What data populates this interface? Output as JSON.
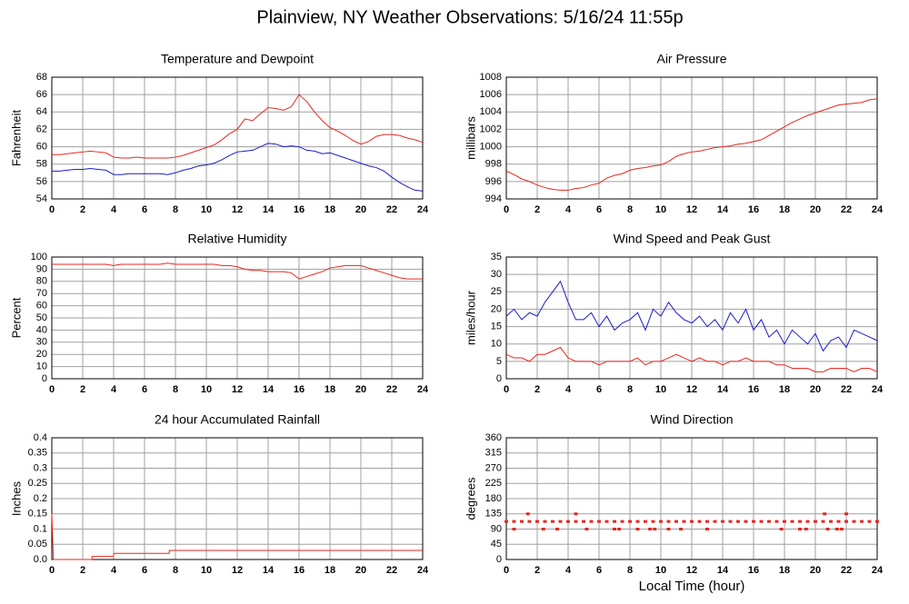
{
  "title": "Plainview, NY Weather Observations: 5/16/24 11:55p",
  "chart_data": [
    {
      "type": "line",
      "title": "Temperature and Dewpoint",
      "ylabel": "Fahrenheit",
      "x": [
        0,
        0.5,
        1,
        1.5,
        2,
        2.5,
        3,
        3.5,
        4,
        4.5,
        5,
        5.5,
        6,
        6.5,
        7,
        7.5,
        8,
        8.5,
        9,
        9.5,
        10,
        10.5,
        11,
        11.5,
        12,
        12.5,
        13,
        13.5,
        14,
        14.5,
        15,
        15.5,
        16,
        16.5,
        17,
        17.5,
        18,
        18.5,
        19,
        19.5,
        20,
        20.5,
        21,
        21.5,
        22,
        22.5,
        23,
        23.5,
        24
      ],
      "series": [
        {
          "color": "#e8261f",
          "values": [
            59.1,
            59.1,
            59.2,
            59.3,
            59.4,
            59.5,
            59.4,
            59.3,
            58.8,
            58.7,
            58.7,
            58.8,
            58.7,
            58.7,
            58.7,
            58.7,
            58.8,
            59.0,
            59.3,
            59.6,
            59.9,
            60.2,
            60.8,
            61.5,
            62.0,
            63.2,
            63.0,
            63.8,
            64.5,
            64.4,
            64.2,
            64.6,
            66.0,
            65.2,
            64.0,
            63.0,
            62.2,
            61.8,
            61.3,
            60.7,
            60.3,
            60.6,
            61.2,
            61.4,
            61.4,
            61.3,
            61.0,
            60.8,
            60.5
          ]
        },
        {
          "color": "#1a1acd",
          "values": [
            57.2,
            57.2,
            57.3,
            57.4,
            57.4,
            57.5,
            57.4,
            57.3,
            56.8,
            56.8,
            56.9,
            56.9,
            56.9,
            56.9,
            56.9,
            56.8,
            57.0,
            57.3,
            57.5,
            57.8,
            57.9,
            58.1,
            58.5,
            59.0,
            59.4,
            59.5,
            59.6,
            60.0,
            60.4,
            60.3,
            60.0,
            60.1,
            60.0,
            59.6,
            59.5,
            59.2,
            59.3,
            59.0,
            58.7,
            58.4,
            58.1,
            57.8,
            57.6,
            57.2,
            56.5,
            55.9,
            55.4,
            55.0,
            54.9
          ]
        }
      ],
      "xlim": [
        0,
        24
      ],
      "xticks": [
        0,
        2,
        4,
        6,
        8,
        10,
        12,
        14,
        16,
        18,
        20,
        22,
        24
      ],
      "ylim": [
        54,
        68
      ],
      "yticks": [
        54,
        56,
        58,
        60,
        62,
        64,
        66,
        68
      ],
      "grid": true
    },
    {
      "type": "line",
      "title": "Air Pressure",
      "ylabel": "millibars",
      "x": [
        0,
        0.5,
        1,
        1.5,
        2,
        2.5,
        3,
        3.5,
        4,
        4.5,
        5,
        5.5,
        6,
        6.5,
        7,
        7.5,
        8,
        8.5,
        9,
        9.5,
        10,
        10.5,
        11,
        11.5,
        12,
        12.5,
        13,
        13.5,
        14,
        14.5,
        15,
        15.5,
        16,
        16.5,
        17,
        17.5,
        18,
        18.5,
        19,
        19.5,
        20,
        20.5,
        21,
        21.5,
        22,
        22.5,
        23,
        23.5,
        24
      ],
      "series": [
        {
          "color": "#e8261f",
          "values": [
            997.2,
            996.8,
            996.3,
            996.0,
            995.6,
            995.3,
            995.1,
            995.0,
            995.0,
            995.2,
            995.3,
            995.6,
            995.8,
            996.4,
            996.7,
            996.9,
            997.3,
            997.5,
            997.6,
            997.8,
            997.9,
            998.3,
            998.9,
            999.2,
            999.4,
            999.5,
            999.7,
            999.9,
            1000.0,
            1000.1,
            1000.3,
            1000.4,
            1000.6,
            1000.8,
            1001.3,
            1001.8,
            1002.3,
            1002.8,
            1003.2,
            1003.6,
            1003.9,
            1004.2,
            1004.5,
            1004.8,
            1004.9,
            1005.0,
            1005.1,
            1005.4,
            1005.5
          ]
        }
      ],
      "xlim": [
        0,
        24
      ],
      "xticks": [
        0,
        2,
        4,
        6,
        8,
        10,
        12,
        14,
        16,
        18,
        20,
        22,
        24
      ],
      "ylim": [
        994,
        1008
      ],
      "yticks": [
        994,
        996,
        998,
        1000,
        1002,
        1004,
        1006,
        1008
      ],
      "grid": true
    },
    {
      "type": "line",
      "title": "Relative Humidity",
      "ylabel": "Percent",
      "x": [
        0,
        0.5,
        1,
        1.5,
        2,
        2.5,
        3,
        3.5,
        4,
        4.5,
        5,
        5.5,
        6,
        6.5,
        7,
        7.5,
        8,
        8.5,
        9,
        9.5,
        10,
        10.5,
        11,
        11.5,
        12,
        12.5,
        13,
        13.5,
        14,
        14.5,
        15,
        15.5,
        16,
        16.5,
        17,
        17.5,
        18,
        18.5,
        19,
        19.5,
        20,
        20.5,
        21,
        21.5,
        22,
        22.5,
        23,
        23.5,
        24
      ],
      "series": [
        {
          "color": "#e8261f",
          "values": [
            94,
            94,
            94,
            94,
            94,
            94,
            94,
            94,
            93,
            94,
            94,
            94,
            94,
            94,
            94,
            95,
            94,
            94,
            94,
            94,
            94,
            94,
            93,
            93,
            92,
            90,
            89,
            89,
            88,
            88,
            88,
            87,
            82,
            84,
            86,
            88,
            91,
            92,
            93,
            93,
            93,
            91,
            89,
            87,
            85,
            83,
            82,
            82,
            82
          ]
        }
      ],
      "xlim": [
        0,
        24
      ],
      "xticks": [
        0,
        2,
        4,
        6,
        8,
        10,
        12,
        14,
        16,
        18,
        20,
        22,
        24
      ],
      "ylim": [
        0,
        100
      ],
      "yticks": [
        0,
        10,
        20,
        30,
        40,
        50,
        60,
        70,
        80,
        90,
        100
      ],
      "grid": true
    },
    {
      "type": "line",
      "title": "Wind Speed and Peak Gust",
      "ylabel": "miles/hour",
      "x": [
        0,
        0.5,
        1,
        1.5,
        2,
        2.5,
        3,
        3.5,
        4,
        4.5,
        5,
        5.5,
        6,
        6.5,
        7,
        7.5,
        8,
        8.5,
        9,
        9.5,
        10,
        10.5,
        11,
        11.5,
        12,
        12.5,
        13,
        13.5,
        14,
        14.5,
        15,
        15.5,
        16,
        16.5,
        17,
        17.5,
        18,
        18.5,
        19,
        19.5,
        20,
        20.5,
        21,
        21.5,
        22,
        22.5,
        23,
        23.5,
        24
      ],
      "series": [
        {
          "color": "#1a1acd",
          "values": [
            18,
            20,
            17,
            19,
            18,
            22,
            25,
            28,
            22,
            17,
            17,
            19,
            15,
            18,
            14,
            16,
            17,
            19,
            14,
            20,
            18,
            22,
            19,
            17,
            16,
            18,
            15,
            17,
            14,
            19,
            16,
            20,
            14,
            17,
            12,
            14,
            10,
            14,
            12,
            10,
            13,
            8,
            11,
            12,
            9,
            14,
            13,
            12,
            11
          ]
        },
        {
          "color": "#e8261f",
          "values": [
            7,
            6,
            6,
            5,
            7,
            7,
            8,
            9,
            6,
            5,
            5,
            5,
            4,
            5,
            5,
            5,
            5,
            6,
            4,
            5,
            5,
            6,
            7,
            6,
            5,
            6,
            5,
            5,
            4,
            5,
            5,
            6,
            5,
            5,
            5,
            4,
            4,
            3,
            3,
            3,
            2,
            2,
            3,
            3,
            3,
            2,
            3,
            3,
            2
          ]
        }
      ],
      "xlim": [
        0,
        24
      ],
      "xticks": [
        0,
        2,
        4,
        6,
        8,
        10,
        12,
        14,
        16,
        18,
        20,
        22,
        24
      ],
      "ylim": [
        0,
        35
      ],
      "yticks": [
        0,
        5,
        10,
        15,
        20,
        25,
        30,
        35
      ],
      "grid": true
    },
    {
      "type": "line",
      "title": "24 hour Accumulated Rainfall",
      "ylabel": "Inches",
      "x": [
        0,
        0.1,
        2.6,
        2.6,
        4.0,
        4.0,
        7.6,
        7.6,
        24
      ],
      "series": [
        {
          "color": "#e8261f",
          "values": [
            0.15,
            0,
            0,
            0.01,
            0.01,
            0.02,
            0.02,
            0.03,
            0.03
          ]
        }
      ],
      "xlim": [
        0,
        24
      ],
      "xticks": [
        0,
        2,
        4,
        6,
        8,
        10,
        12,
        14,
        16,
        18,
        20,
        22,
        24
      ],
      "ylim": [
        0,
        0.4
      ],
      "yticks": [
        {
          "value": 0,
          "label": "0.0"
        },
        0.05,
        {
          "value": 0.1,
          "label": "0.1"
        },
        0.15,
        {
          "value": 0.2,
          "label": "0.2"
        },
        0.25,
        {
          "value": 0.3,
          "label": "0.3"
        },
        0.35,
        {
          "value": 0.4,
          "label": "0.4"
        }
      ],
      "grid": true
    },
    {
      "type": "scatter",
      "title": "Wind Direction",
      "ylabel": "degrees",
      "xlabel": "Local Time (hour)",
      "x": [
        0,
        0.5,
        1,
        1.5,
        2,
        2.5,
        3,
        3.5,
        4,
        4.5,
        5,
        5.5,
        6,
        6.5,
        7,
        7.5,
        8,
        8.5,
        9,
        9.5,
        10,
        10.5,
        11,
        11.5,
        12,
        12.5,
        13,
        13.5,
        14,
        14.5,
        15,
        15.5,
        16,
        16.5,
        17,
        17.5,
        18,
        18.5,
        19,
        19.5,
        20,
        20.5,
        21,
        21.5,
        22,
        22.5,
        23,
        23.5,
        24,
        1.4,
        4.5,
        20.6,
        22.0,
        0.5,
        2.4,
        3.3,
        5.2,
        7.0,
        7.3,
        8.5,
        9.3,
        9.6,
        10.5,
        11.3,
        13.0,
        17.8,
        19.0,
        19.4,
        20.8,
        21.4,
        21.7
      ],
      "series": [
        {
          "color": "#e8261f",
          "values": [
            112.5,
            112.5,
            112.5,
            112.5,
            112.5,
            112.5,
            112.5,
            112.5,
            112.5,
            112.5,
            112.5,
            112.5,
            112.5,
            112.5,
            112.5,
            112.5,
            112.5,
            112.5,
            112.5,
            112.5,
            112.5,
            112.5,
            112.5,
            112.5,
            112.5,
            112.5,
            112.5,
            112.5,
            112.5,
            112.5,
            112.5,
            112.5,
            112.5,
            112.5,
            112.5,
            112.5,
            112.5,
            112.5,
            112.5,
            112.5,
            112.5,
            112.5,
            112.5,
            112.5,
            112.5,
            112.5,
            112.5,
            112.5,
            112.5,
            135,
            135,
            135,
            135,
            90,
            90,
            90,
            90,
            90,
            90,
            90,
            90,
            90,
            90,
            90,
            90,
            90,
            90,
            90,
            90,
            90,
            90
          ]
        }
      ],
      "xlim": [
        0,
        24
      ],
      "xticks": [
        0,
        2,
        4,
        6,
        8,
        10,
        12,
        14,
        16,
        18,
        20,
        22,
        24
      ],
      "ylim": [
        0,
        360
      ],
      "yticks": [
        0,
        45,
        90,
        135,
        180,
        225,
        270,
        315,
        360
      ],
      "grid": true
    }
  ]
}
